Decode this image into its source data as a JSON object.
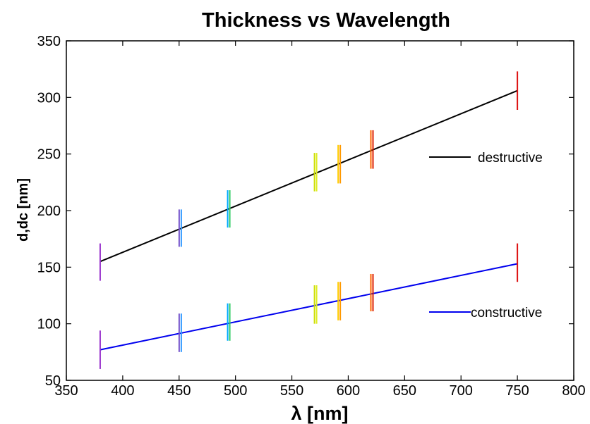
{
  "chart_data": {
    "type": "line",
    "title": "Thickness vs Wavelength",
    "xlabel": "λ  [nm]",
    "ylabel": "d,dc  [nm]",
    "xlim": [
      350,
      800
    ],
    "ylim": [
      50,
      350
    ],
    "x_ticks": [
      350,
      400,
      450,
      500,
      550,
      600,
      650,
      700,
      750,
      800
    ],
    "y_ticks": [
      50,
      100,
      150,
      200,
      250,
      300,
      350
    ],
    "legend_position": "right",
    "grid": false,
    "series": [
      {
        "name": "destructive",
        "color": "#000000",
        "line": {
          "x": [
            380,
            750
          ],
          "y": [
            155,
            306
          ]
        },
        "error_bars": [
          {
            "x": 380,
            "y_low": 138,
            "y_high": 171,
            "colors": [
              "#9933cc"
            ]
          },
          {
            "x": 451,
            "y_low": 168,
            "y_high": 201,
            "colors": [
              "#7755cc",
              "#3399ff"
            ]
          },
          {
            "x": 494,
            "y_low": 185,
            "y_high": 218,
            "colors": [
              "#00aaff",
              "#33cc66"
            ]
          },
          {
            "x": 571,
            "y_low": 217,
            "y_high": 251,
            "colors": [
              "#ccdd00",
              "#ddee22"
            ]
          },
          {
            "x": 592,
            "y_low": 224,
            "y_high": 258,
            "colors": [
              "#ffcc00",
              "#ff9900"
            ]
          },
          {
            "x": 621,
            "y_low": 237,
            "y_high": 271,
            "colors": [
              "#ff6600",
              "#dd2200"
            ]
          },
          {
            "x": 750,
            "y_low": 289,
            "y_high": 323,
            "colors": [
              "#dd1111"
            ]
          }
        ]
      },
      {
        "name": "constructive",
        "color": "#0000ee",
        "line": {
          "x": [
            380,
            750
          ],
          "y": [
            77,
            153
          ]
        },
        "error_bars": [
          {
            "x": 380,
            "y_low": 60,
            "y_high": 94,
            "colors": [
              "#9933cc"
            ]
          },
          {
            "x": 451,
            "y_low": 75,
            "y_high": 109,
            "colors": [
              "#7755cc",
              "#3399ff"
            ]
          },
          {
            "x": 494,
            "y_low": 85,
            "y_high": 118,
            "colors": [
              "#00aaff",
              "#33cc66"
            ]
          },
          {
            "x": 571,
            "y_low": 100,
            "y_high": 134,
            "colors": [
              "#ccdd00",
              "#ddee22"
            ]
          },
          {
            "x": 592,
            "y_low": 103,
            "y_high": 137,
            "colors": [
              "#ffcc00",
              "#ff9900"
            ]
          },
          {
            "x": 621,
            "y_low": 111,
            "y_high": 144,
            "colors": [
              "#ff6600",
              "#dd2200"
            ]
          },
          {
            "x": 750,
            "y_low": 137,
            "y_high": 171,
            "colors": [
              "#dd1111"
            ]
          }
        ]
      }
    ]
  }
}
